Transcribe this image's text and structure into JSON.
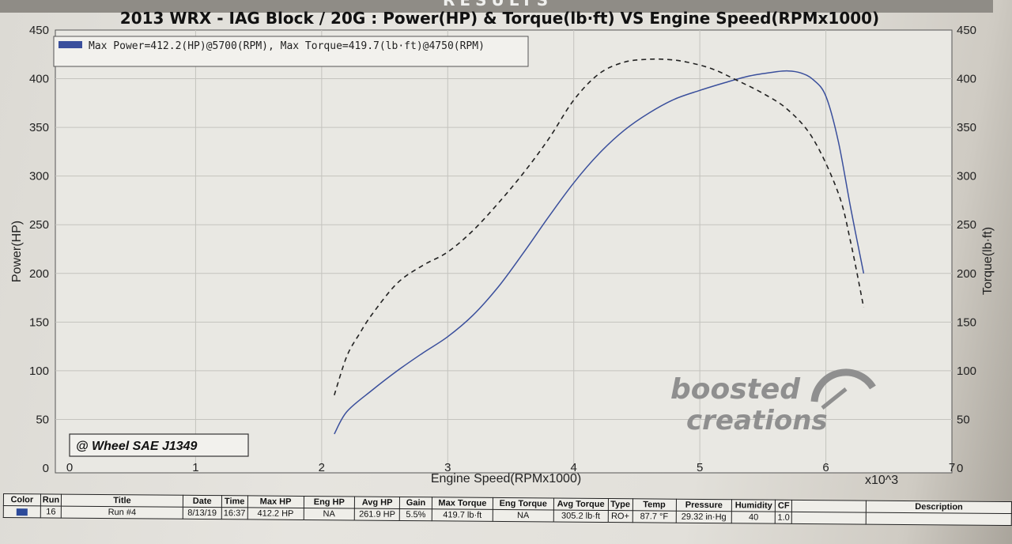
{
  "header": {
    "results_label": "RESULTS"
  },
  "chart_data": {
    "type": "line",
    "title": "2013 WRX - IAG Block / 20G : Power(HP) & Torque(lb·ft) VS Engine Speed(RPMx1000)",
    "xlabel": "Engine Speed(RPMx1000)",
    "ylabel": "Power(HP)",
    "y2label": "Torque(lb·ft)",
    "x_multiplier_label": "x10^3",
    "xlim": [
      0,
      7
    ],
    "ylim": [
      0,
      450
    ],
    "y2lim": [
      0,
      450
    ],
    "x_ticks": [
      "0",
      "1",
      "2",
      "3",
      "4",
      "5",
      "6",
      "7"
    ],
    "y_ticks": [
      "0",
      "50",
      "100",
      "150",
      "200",
      "250",
      "300",
      "350",
      "400",
      "450"
    ],
    "y2_ticks": [
      "0",
      "50",
      "100",
      "150",
      "200",
      "250",
      "300",
      "350",
      "400",
      "450"
    ],
    "grid": true,
    "legend_text": "Max Power=412.2(HP)@5700(RPM), Max Torque=419.7(lb·ft)@4750(RPM)",
    "legend_position": "top-left",
    "annotation": "@ Wheel SAE J1349",
    "watermark": [
      "boosted",
      "creations"
    ],
    "series": [
      {
        "axis": "left",
        "style": "solid",
        "color": "#3a4f9c",
        "x": [
          2.1,
          2.2,
          2.4,
          2.6,
          2.8,
          3.0,
          3.2,
          3.4,
          3.6,
          3.8,
          4.0,
          4.2,
          4.4,
          4.6,
          4.8,
          5.0,
          5.2,
          5.4,
          5.6,
          5.7,
          5.8,
          5.9,
          6.0,
          6.1,
          6.2,
          6.3
        ],
        "values": [
          35,
          58,
          80,
          100,
          118,
          135,
          157,
          186,
          221,
          258,
          293,
          323,
          347,
          365,
          379,
          388,
          396,
          403,
          407,
          408,
          406,
          399,
          382,
          335,
          265,
          200
        ]
      },
      {
        "axis": "right",
        "style": "dashed",
        "color": "#222222",
        "x": [
          2.1,
          2.2,
          2.3,
          2.4,
          2.6,
          2.8,
          3.0,
          3.2,
          3.4,
          3.6,
          3.8,
          4.0,
          4.2,
          4.4,
          4.6,
          4.75,
          4.9,
          5.1,
          5.3,
          5.5,
          5.7,
          5.9,
          6.1,
          6.2,
          6.3
        ],
        "values": [
          75,
          115,
          138,
          158,
          190,
          208,
          222,
          244,
          272,
          303,
          338,
          378,
          405,
          417,
          420,
          419.7,
          417,
          410,
          398,
          385,
          368,
          338,
          282,
          230,
          165
        ]
      }
    ]
  },
  "summary_table": {
    "headers": [
      "Color",
      "Run",
      "Title",
      "Date",
      "Time",
      "Max HP",
      "Eng HP",
      "Avg HP",
      "Gain",
      "Max Torque",
      "Eng Torque",
      "Avg Torque",
      "Type",
      "Temp",
      "Pressure",
      "Humidity",
      "CF",
      "",
      "Description"
    ],
    "row": [
      "",
      "16",
      "Run #4",
      "8/13/19",
      "16:37",
      "412.2 HP",
      "NA",
      "261.9 HP",
      "5.5%",
      "419.7 lb·ft",
      "NA",
      "305.2 lb·ft",
      "RO+",
      "87.7 °F",
      "29.32 in·Hg",
      "40",
      "1.0",
      "",
      ""
    ],
    "swatch_color": "#2c4a9a"
  }
}
